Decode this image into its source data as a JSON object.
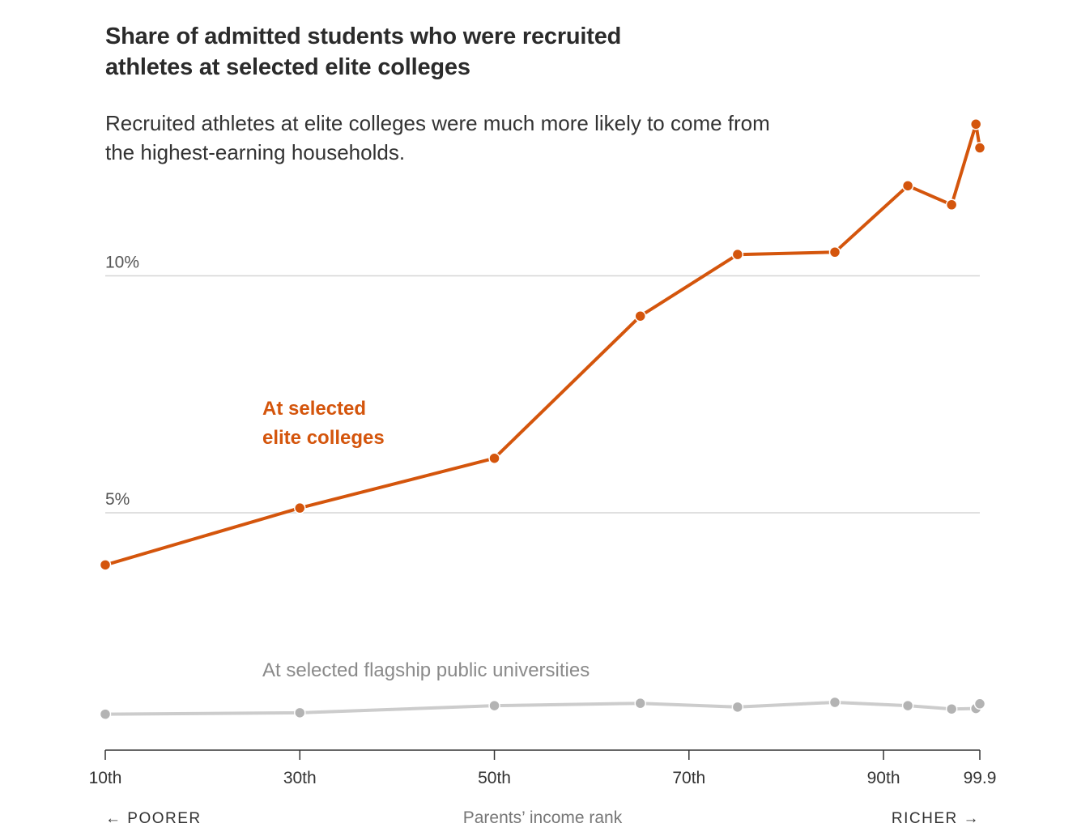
{
  "title": "Share of admitted students who were recruited athletes at selected elite colleges",
  "subtitle": "Recruited athletes at elite colleges were much more likely to come from the highest-earning households.",
  "colors": {
    "elite": "#d4550c",
    "flagship": "#cccccc",
    "flagship_dot": "#b3b3b3",
    "grid": "#d6d6d6",
    "axis": "#333333"
  },
  "x_axis": {
    "label": "Parents’ income rank",
    "poorer_label": "← POORER",
    "richer_label": "RICHER →"
  },
  "chart_data": {
    "type": "line",
    "title": "Share of admitted students who were recruited athletes at selected elite colleges",
    "xlabel": "Parents’ income rank",
    "ylabel": "",
    "xlim": [
      10,
      99.9
    ],
    "ylim": [
      0,
      14
    ],
    "x_ticks": [
      {
        "value": 10,
        "label": "10th"
      },
      {
        "value": 30,
        "label": "30th"
      },
      {
        "value": 50,
        "label": "50th"
      },
      {
        "value": 70,
        "label": "70th"
      },
      {
        "value": 90,
        "label": "90th"
      },
      {
        "value": 99.9,
        "label": "99.9"
      }
    ],
    "y_ticks": [
      {
        "value": 5,
        "label": "5%"
      },
      {
        "value": 10,
        "label": "10%"
      }
    ],
    "grid": true,
    "series": [
      {
        "name": "At selected elite colleges",
        "color": "#d4550c",
        "x": [
          10,
          30,
          50,
          65,
          75,
          85,
          92.5,
          97,
          99.5,
          99.9
        ],
        "y": [
          3.9,
          5.1,
          6.15,
          9.15,
          10.45,
          10.5,
          11.9,
          11.5,
          13.2,
          12.7
        ]
      },
      {
        "name": "At selected flagship public universities",
        "color": "#cccccc",
        "x": [
          10,
          30,
          50,
          65,
          75,
          85,
          92.5,
          97,
          99.5,
          99.9
        ],
        "y": [
          0.75,
          0.78,
          0.93,
          0.98,
          0.9,
          1.0,
          0.93,
          0.86,
          0.87,
          0.97
        ]
      }
    ],
    "annotations": [
      {
        "series": 0,
        "lines": [
          "At selected",
          "elite colleges"
        ]
      },
      {
        "series": 1,
        "lines": [
          "At selected flagship public universities"
        ]
      }
    ]
  }
}
